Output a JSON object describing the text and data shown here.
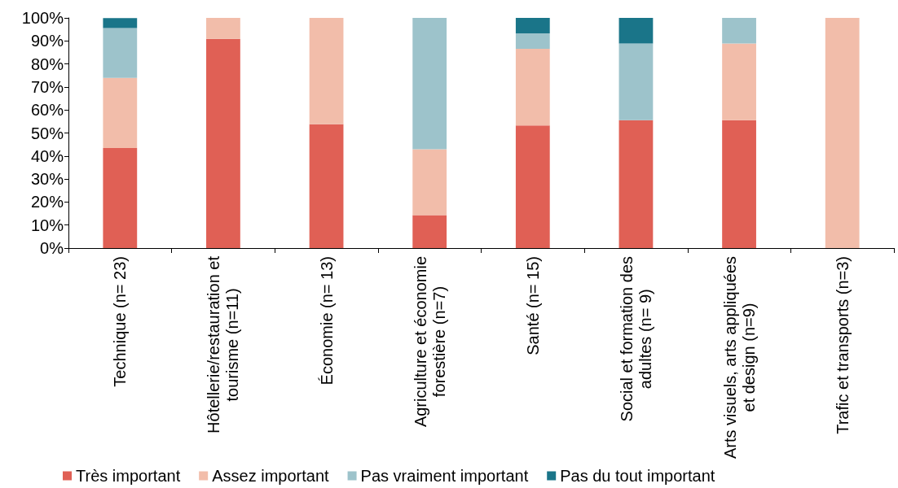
{
  "chart_data": {
    "type": "bar",
    "stacked": true,
    "categories": [
      "Technique (n= 23)",
      "Hôtellerie/restauration et tourisme (n=11)",
      "Économie (n= 13)",
      "Agriculture et économie forestière (n=7)",
      "Santé (n= 15)",
      "Social et formation des adultes (n= 9)",
      "Arts visuels, arts appliquées et design (n=9)",
      "Trafic et transports (n=3)"
    ],
    "series": [
      {
        "name": "Très important",
        "color": "#e06055",
        "values": [
          43.5,
          90.9,
          53.8,
          14.3,
          53.3,
          55.6,
          55.6,
          0
        ]
      },
      {
        "name": "Assez important",
        "color": "#f2bdaa",
        "values": [
          30.4,
          9.1,
          46.2,
          28.6,
          33.3,
          0,
          33.3,
          100
        ]
      },
      {
        "name": "Pas vraiment important",
        "color": "#9dc3cb",
        "values": [
          21.7,
          0,
          0,
          57.1,
          6.7,
          33.3,
          11.1,
          0
        ]
      },
      {
        "name": "Pas du tout important",
        "color": "#1a7589",
        "values": [
          4.3,
          0,
          0,
          0,
          6.7,
          11.1,
          0,
          0
        ]
      }
    ],
    "ylim": [
      0,
      100
    ],
    "yticks": [
      {
        "value": 0,
        "label": "0%"
      },
      {
        "value": 10,
        "label": "10%"
      },
      {
        "value": 20,
        "label": "20%"
      },
      {
        "value": 30,
        "label": "30%"
      },
      {
        "value": 40,
        "label": "40%"
      },
      {
        "value": 50,
        "label": "50%"
      },
      {
        "value": 60,
        "label": "60%"
      },
      {
        "value": 70,
        "label": "70%"
      },
      {
        "value": 80,
        "label": "80%"
      },
      {
        "value": 90,
        "label": "90%"
      },
      {
        "value": 100,
        "label": "100%"
      }
    ],
    "legend": "bottom"
  }
}
